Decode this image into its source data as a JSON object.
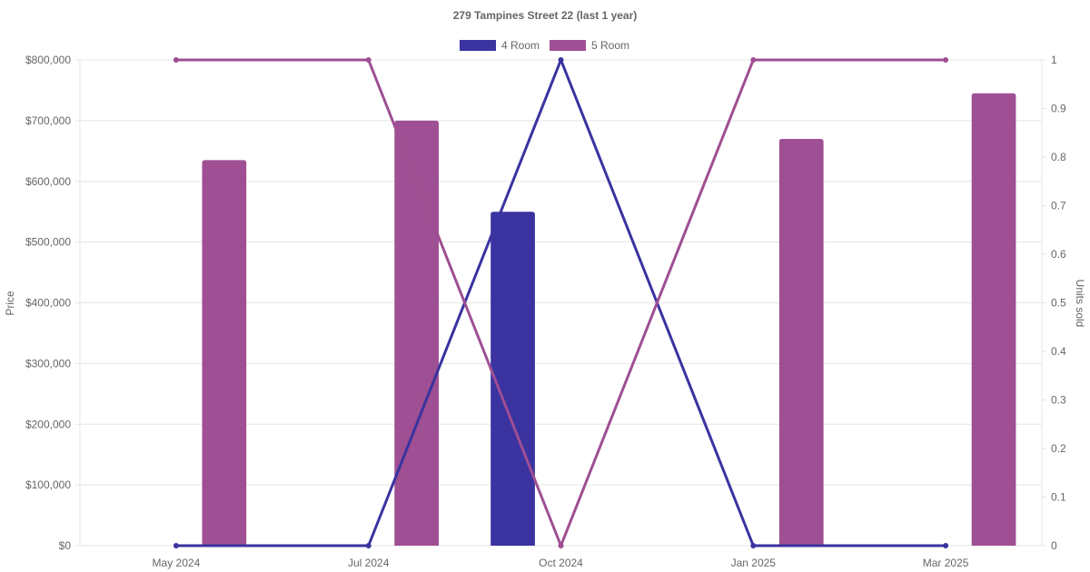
{
  "chart_data": {
    "type": "bar",
    "title": "279 Tampines Street 22 (last 1 year)",
    "categories": [
      "May 2024",
      "Jul 2024",
      "Oct 2024",
      "Jan 2025",
      "Mar 2025"
    ],
    "series": [
      {
        "name": "4 Room",
        "kind": "bar",
        "axis": "price",
        "color": "#3a33a0",
        "values": [
          null,
          null,
          550000,
          null,
          null
        ]
      },
      {
        "name": "5 Room",
        "kind": "bar",
        "axis": "price",
        "color": "#9f4f93",
        "values": [
          635000,
          700000,
          null,
          670000,
          745000
        ]
      },
      {
        "name": "4 Room",
        "kind": "line",
        "axis": "units",
        "color": "#3a33a0",
        "values": [
          0,
          0,
          1,
          0,
          0
        ]
      },
      {
        "name": "5 Room",
        "kind": "line",
        "axis": "units",
        "color": "#9f4f93",
        "values": [
          1,
          1,
          0,
          1,
          1
        ]
      }
    ],
    "legend": {
      "position": "top",
      "items": [
        {
          "label": "4 Room",
          "color": "#3a33a0"
        },
        {
          "label": "5 Room",
          "color": "#9f4f93"
        }
      ]
    },
    "y_left": {
      "label": "Price",
      "ylim": [
        0,
        800000
      ],
      "ticks": [
        "$0",
        "$100,000",
        "$200,000",
        "$300,000",
        "$400,000",
        "$500,000",
        "$600,000",
        "$700,000",
        "$800,000"
      ]
    },
    "y_right": {
      "label": "Units sold",
      "ylim": [
        0,
        1
      ],
      "ticks": [
        "0",
        "0.1",
        "0.2",
        "0.3",
        "0.4",
        "0.5",
        "0.6",
        "0.7",
        "0.8",
        "0.9",
        "1"
      ]
    },
    "grid": true
  }
}
